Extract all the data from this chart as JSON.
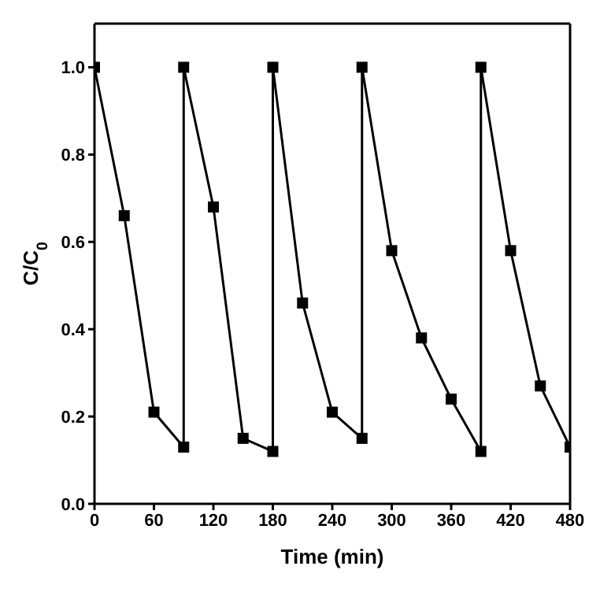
{
  "chart_data": {
    "type": "line",
    "xlabel": "Time (min)",
    "ylabel": "C/C$_{0}$",
    "series": [
      {
        "color": "#000000",
        "x": [
          0,
          30,
          60,
          90,
          90,
          120,
          150,
          180,
          180,
          210,
          240,
          270,
          270,
          300,
          330,
          360,
          390,
          390,
          420,
          450,
          480
        ],
        "values": [
          1.0,
          0.66,
          0.21,
          0.13,
          1.0,
          0.68,
          0.15,
          0.12,
          1.0,
          0.46,
          0.21,
          0.15,
          1.0,
          0.58,
          0.38,
          0.24,
          0.12,
          1.0,
          0.58,
          0.27,
          0.13
        ]
      }
    ],
    "xlim": [
      0,
      480
    ],
    "xticks": [
      0,
      60,
      120,
      180,
      240,
      300,
      360,
      420,
      480
    ],
    "ylim": [
      0,
      1.1
    ],
    "yticks": [
      {
        "value": 0,
        "label": "0.0"
      },
      {
        "value": 0.2,
        "label": "0.2"
      },
      {
        "value": 0.4,
        "label": "0.4"
      },
      {
        "value": 0.6,
        "label": "0.6"
      },
      {
        "value": 0.8,
        "label": "0.8"
      },
      {
        "value": 1.0,
        "label": "1.0"
      }
    ],
    "marker": "square",
    "line_style": "solid"
  }
}
